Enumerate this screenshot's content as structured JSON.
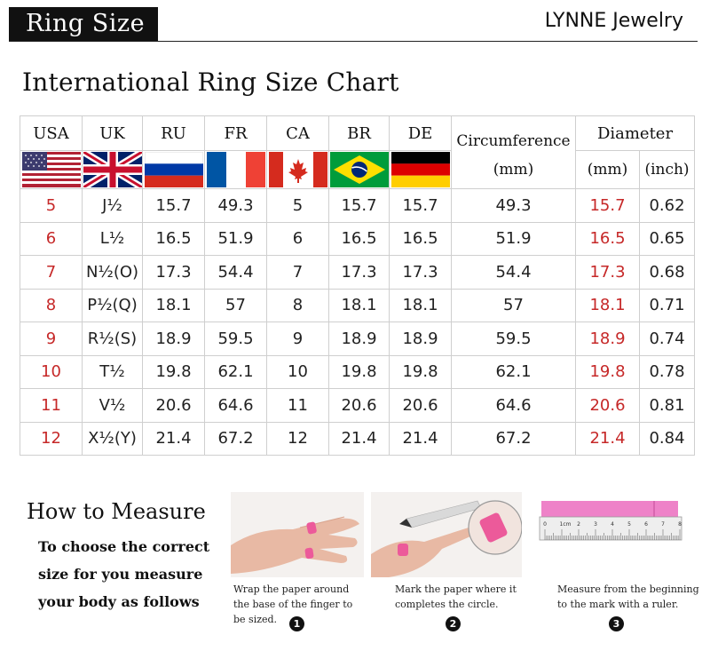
{
  "header": {
    "badge": "Ring Size",
    "brand": "LYNNE Jewelry"
  },
  "title": "International Ring Size Chart",
  "table": {
    "columns": [
      "USA",
      "UK",
      "RU",
      "FR",
      "CA",
      "BR",
      "DE"
    ],
    "circumference_label": "Circumference",
    "circumference_unit": "(mm)",
    "diameter_label": "Diameter",
    "diameter_mm_unit": "(mm)",
    "diameter_inch_unit": "(inch)",
    "rows": [
      {
        "usa": "5",
        "uk": "J½",
        "ru": "15.7",
        "fr": "49.3",
        "ca": "5",
        "br": "15.7",
        "de": "15.7",
        "circ": "49.3",
        "dmm": "15.7",
        "din": "0.62"
      },
      {
        "usa": "6",
        "uk": "L½",
        "ru": "16.5",
        "fr": "51.9",
        "ca": "6",
        "br": "16.5",
        "de": "16.5",
        "circ": "51.9",
        "dmm": "16.5",
        "din": "0.65"
      },
      {
        "usa": "7",
        "uk": "N½(O)",
        "ru": "17.3",
        "fr": "54.4",
        "ca": "7",
        "br": "17.3",
        "de": "17.3",
        "circ": "54.4",
        "dmm": "17.3",
        "din": "0.68"
      },
      {
        "usa": "8",
        "uk": "P½(Q)",
        "ru": "18.1",
        "fr": "57",
        "ca": "8",
        "br": "18.1",
        "de": "18.1",
        "circ": "57",
        "dmm": "18.1",
        "din": "0.71"
      },
      {
        "usa": "9",
        "uk": "R½(S)",
        "ru": "18.9",
        "fr": "59.5",
        "ca": "9",
        "br": "18.9",
        "de": "18.9",
        "circ": "59.5",
        "dmm": "18.9",
        "din": "0.74"
      },
      {
        "usa": "10",
        "uk": "T½",
        "ru": "19.8",
        "fr": "62.1",
        "ca": "10",
        "br": "19.8",
        "de": "19.8",
        "circ": "62.1",
        "dmm": "19.8",
        "din": "0.78"
      },
      {
        "usa": "11",
        "uk": "V½",
        "ru": "20.6",
        "fr": "64.6",
        "ca": "11",
        "br": "20.6",
        "de": "20.6",
        "circ": "64.6",
        "dmm": "20.6",
        "din": "0.81"
      },
      {
        "usa": "12",
        "uk": "X½(Y)",
        "ru": "21.4",
        "fr": "67.2",
        "ca": "12",
        "br": "21.4",
        "de": "21.4",
        "circ": "67.2",
        "dmm": "21.4",
        "din": "0.84"
      }
    ]
  },
  "colors": {
    "accent_red": "#c62828",
    "badge_bg": "#111111",
    "ruler_pink": "#ee82c8"
  },
  "howto": {
    "title": "How to Measure",
    "subtitle": "To choose the correct size for you measure your body as follows",
    "steps": [
      {
        "number": "1",
        "caption": "Wrap the paper around the base of the finger to be sized.",
        "icon": "wrap-paper-on-finger-photo"
      },
      {
        "number": "2",
        "caption": "Mark the paper where it completes the circle.",
        "icon": "mark-paper-with-pen-photo"
      },
      {
        "number": "3",
        "caption": "Measure from the beginning to the mark with a ruler.",
        "icon": "ruler-measurement-photo"
      }
    ],
    "ruler_numbers": [
      "0",
      "1cm",
      "2",
      "3",
      "4",
      "5",
      "6",
      "7",
      "8"
    ]
  }
}
